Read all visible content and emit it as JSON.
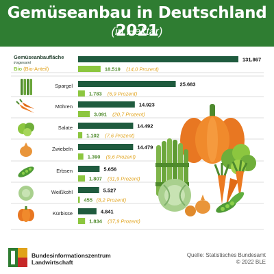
{
  "header": {
    "title": "Gemüseanbau in Deutschland 2021",
    "subtitle": "(in Hektar)"
  },
  "colors": {
    "header_green": "#2f7d32",
    "total_bar": "#1f5b3e",
    "bio_bar": "#8cc63f",
    "bio_text": "#e0a21a"
  },
  "chart_data": {
    "type": "bar",
    "orientation": "horizontal",
    "title": "Gemüseanbau in Deutschland 2021",
    "subtitle": "(in Hektar)",
    "series": [
      {
        "name": "",
        "values": [
          131867,
          25683,
          14923,
          14492,
          14479,
          5656,
          5527,
          4841
        ]
      },
      {
        "name": "Bio (Bio-Anteil)",
        "values": [
          18519,
          1783,
          3091,
          1102,
          1390,
          1807,
          455,
          1834
        ]
      }
    ],
    "categories": [
      "Gemüseanbaufläche insgesamt",
      "Spargel",
      "Möhren",
      "Salate",
      "Zwiebeln",
      "Erbsen",
      "Weißkohl",
      "Kürbisse"
    ],
    "total_label_first": "Gemüseanbaufläche",
    "total_label_first_sub": "insgesamt",
    "bio_label": "Bio",
    "bio_label_suffix": "(Bio-Anteil)",
    "value_labels": [
      "131.867",
      "25.683",
      "14.923",
      "14.492",
      "14.479",
      "5.656",
      "5.527",
      "4.841"
    ],
    "bio_value_labels": [
      "18.519",
      "1.783",
      "3.091",
      "1.102",
      "1.390",
      "1.807",
      "455",
      "1.834"
    ],
    "bio_percent_labels": [
      "(14,0 Prozent)",
      "(6,9 Prozent)",
      "(20,7 Prozent)",
      "(7,6 Prozent)",
      "(9,6 Prozent)",
      "(31,9 Prozent)",
      "(8,2 Prozent)",
      "(37,9 Prozent)"
    ]
  },
  "icons": [
    "asparagus-icon",
    "carrot-icon",
    "lettuce-icon",
    "onion-icon",
    "pea-pod-icon",
    "cabbage-icon",
    "pumpkin-icon"
  ],
  "footer": {
    "org_line1": "Bundesinformationszentrum",
    "org_line2": "Landwirtschaft",
    "source": "Quelle: Statistisches Bundesamt",
    "copyright": "© 2022 BLE"
  }
}
